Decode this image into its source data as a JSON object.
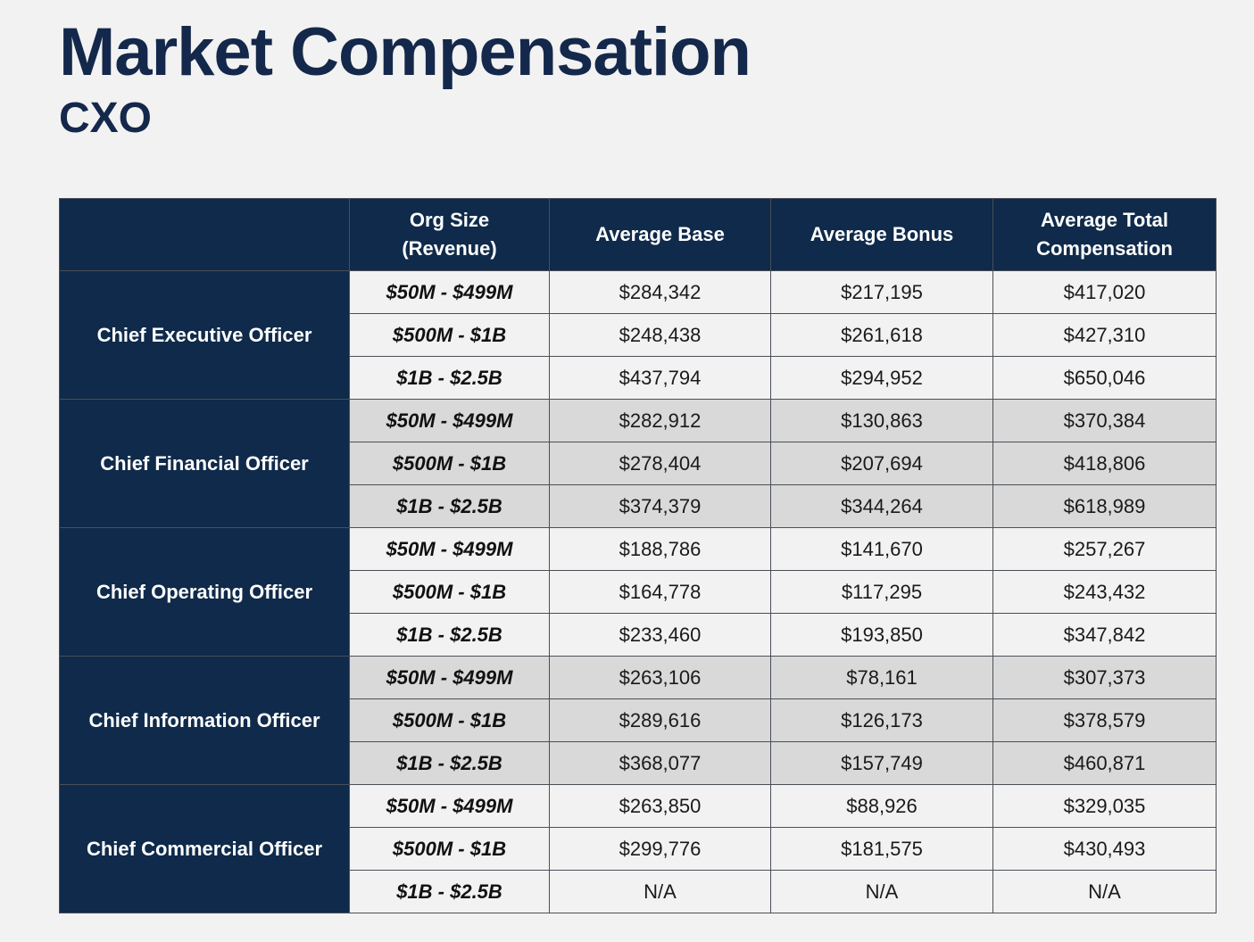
{
  "title": "Market Compensation",
  "subtitle": "CXO",
  "table": {
    "headers": [
      "",
      "Org Size\n(Revenue)",
      "Average Base",
      "Average Bonus",
      "Average Total\nCompensation"
    ],
    "groups": [
      {
        "role": "Chief Executive Officer",
        "shaded": false,
        "rows": [
          {
            "org": "$50M - $499M",
            "base": "$284,342",
            "bonus": "$217,195",
            "total": "$417,020"
          },
          {
            "org": "$500M - $1B",
            "base": "$248,438",
            "bonus": "$261,618",
            "total": "$427,310"
          },
          {
            "org": "$1B - $2.5B",
            "base": "$437,794",
            "bonus": "$294,952",
            "total": "$650,046"
          }
        ]
      },
      {
        "role": "Chief Financial Officer",
        "shaded": true,
        "rows": [
          {
            "org": "$50M - $499M",
            "base": "$282,912",
            "bonus": "$130,863",
            "total": "$370,384"
          },
          {
            "org": "$500M - $1B",
            "base": "$278,404",
            "bonus": "$207,694",
            "total": "$418,806"
          },
          {
            "org": "$1B - $2.5B",
            "base": "$374,379",
            "bonus": "$344,264",
            "total": "$618,989"
          }
        ]
      },
      {
        "role": "Chief Operating Officer",
        "shaded": false,
        "rows": [
          {
            "org": "$50M - $499M",
            "base": "$188,786",
            "bonus": "$141,670",
            "total": "$257,267"
          },
          {
            "org": "$500M - $1B",
            "base": "$164,778",
            "bonus": "$117,295",
            "total": "$243,432"
          },
          {
            "org": "$1B - $2.5B",
            "base": "$233,460",
            "bonus": "$193,850",
            "total": "$347,842"
          }
        ]
      },
      {
        "role": "Chief Information Officer",
        "shaded": true,
        "rows": [
          {
            "org": "$50M - $499M",
            "base": "$263,106",
            "bonus": "$78,161",
            "total": "$307,373"
          },
          {
            "org": "$500M - $1B",
            "base": "$289,616",
            "bonus": "$126,173",
            "total": "$378,579"
          },
          {
            "org": "$1B - $2.5B",
            "base": "$368,077",
            "bonus": "$157,749",
            "total": "$460,871"
          }
        ]
      },
      {
        "role": "Chief Commercial Officer",
        "shaded": false,
        "rows": [
          {
            "org": "$50M - $499M",
            "base": "$263,850",
            "bonus": "$88,926",
            "total": "$329,035"
          },
          {
            "org": "$500M - $1B",
            "base": "$299,776",
            "bonus": "$181,575",
            "total": "$430,493"
          },
          {
            "org": "$1B - $2.5B",
            "base": "N/A",
            "bonus": "N/A",
            "total": "N/A"
          }
        ]
      }
    ]
  },
  "colors": {
    "navy": "#0f2a4a",
    "title_navy": "#14284b",
    "shade_gray": "#d9d9d9",
    "background": "#f2f2f2"
  }
}
